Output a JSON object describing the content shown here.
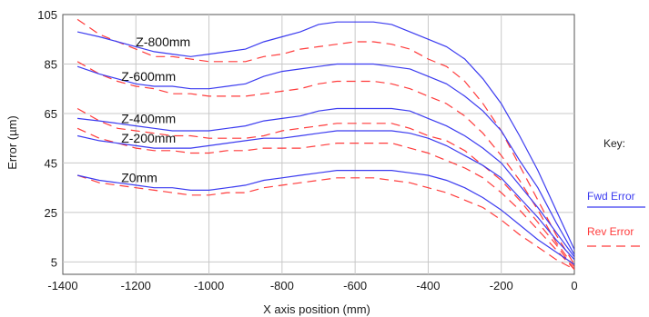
{
  "chart_data": {
    "type": "line",
    "title": "",
    "xlabel": "X axis position (mm)",
    "ylabel": "Error (µm)",
    "xlim": [
      -1400,
      0
    ],
    "ylim": [
      0,
      105
    ],
    "x_ticks": [
      -1400,
      -1200,
      -1000,
      -800,
      -600,
      -400,
      -200,
      0
    ],
    "y_ticks": [
      5,
      25,
      45,
      65,
      85,
      105
    ],
    "grid": true,
    "legend": {
      "title": "Key:",
      "placement": "right",
      "entries": [
        {
          "label": "Fwd Error",
          "color": "#3b3bf0",
          "dash": "solid"
        },
        {
          "label": "Rev Error",
          "color": "#ff3b3b",
          "dash": "dashed"
        }
      ]
    },
    "x": [
      -1360,
      -1300,
      -1250,
      -1200,
      -1150,
      -1100,
      -1050,
      -1000,
      -950,
      -900,
      -850,
      -800,
      -750,
      -700,
      -650,
      -600,
      -550,
      -500,
      -450,
      -400,
      -350,
      -300,
      -250,
      -200,
      -150,
      -100,
      -50,
      0
    ],
    "groups": [
      {
        "label": "Z-800mm",
        "fwd": [
          98,
          96,
          94,
          92,
          90,
          89,
          88,
          89,
          90,
          91,
          94,
          96,
          98,
          101,
          102,
          102,
          102,
          101,
          98,
          95,
          92,
          87,
          79,
          69,
          56,
          42,
          26,
          10
        ],
        "rev": [
          103,
          97,
          94,
          91,
          88,
          88,
          87,
          86,
          86,
          86,
          88,
          89,
          91,
          92,
          93,
          94,
          94,
          93,
          91,
          87,
          84,
          78,
          69,
          58,
          44,
          30,
          16,
          4
        ]
      },
      {
        "label": "Z-600mm",
        "fwd": [
          84,
          81,
          79,
          77,
          76,
          76,
          75,
          75,
          76,
          77,
          80,
          82,
          83,
          84,
          85,
          85,
          85,
          84,
          83,
          80,
          77,
          72,
          66,
          58,
          46,
          35,
          21,
          8
        ],
        "rev": [
          86,
          81,
          78,
          76,
          75,
          73,
          73,
          72,
          72,
          72,
          73,
          74,
          75,
          77,
          78,
          78,
          78,
          77,
          75,
          72,
          69,
          64,
          57,
          48,
          38,
          26,
          13,
          3
        ]
      },
      {
        "label": "Z-400mm",
        "fwd": [
          63,
          62,
          61,
          60,
          59,
          58,
          58,
          58,
          59,
          60,
          62,
          63,
          64,
          66,
          67,
          67,
          67,
          67,
          66,
          63,
          60,
          56,
          51,
          45,
          36,
          27,
          17,
          7
        ],
        "rev": [
          67,
          62,
          59,
          58,
          57,
          56,
          56,
          55,
          55,
          55,
          56,
          58,
          59,
          60,
          61,
          61,
          61,
          61,
          59,
          56,
          54,
          50,
          44,
          38,
          30,
          21,
          12,
          2
        ]
      },
      {
        "label": "Z-200mm",
        "fwd": [
          56,
          54,
          53,
          52,
          51,
          51,
          51,
          52,
          53,
          54,
          55,
          55,
          56,
          57,
          58,
          58,
          58,
          58,
          57,
          55,
          52,
          48,
          44,
          39,
          31,
          23,
          14,
          6
        ],
        "rev": [
          59,
          55,
          53,
          51,
          50,
          50,
          49,
          49,
          50,
          50,
          51,
          51,
          51,
          52,
          53,
          53,
          53,
          53,
          51,
          49,
          46,
          43,
          39,
          33,
          26,
          18,
          10,
          2
        ]
      },
      {
        "label": "Z0mm",
        "fwd": [
          40,
          38,
          37,
          36,
          35,
          35,
          34,
          34,
          35,
          36,
          38,
          39,
          40,
          41,
          42,
          42,
          42,
          42,
          41,
          40,
          38,
          35,
          31,
          26,
          20,
          14,
          9,
          4
        ],
        "rev": [
          40,
          37,
          36,
          35,
          34,
          33,
          32,
          32,
          33,
          33,
          35,
          36,
          37,
          38,
          39,
          39,
          39,
          38,
          37,
          35,
          33,
          30,
          27,
          22,
          16,
          11,
          6,
          2
        ]
      }
    ]
  }
}
